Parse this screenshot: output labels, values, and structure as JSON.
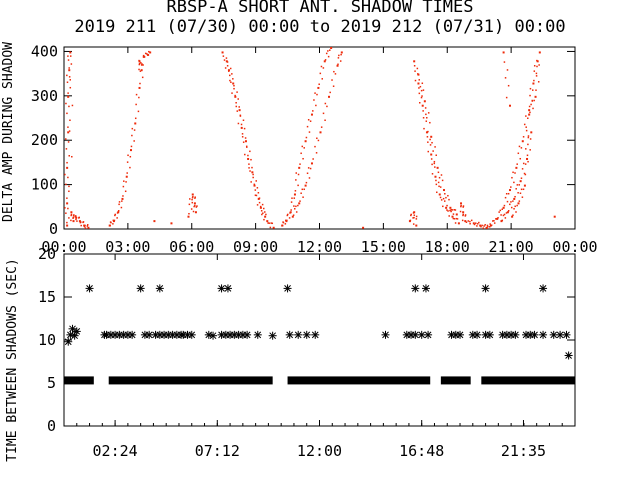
{
  "chart_data": [
    {
      "type": "scatter",
      "title": "RBSP-A SHORT ANT. SHADOW TIMES",
      "subtitle": "2019 211 (07/30) 00:00 to 2019 212 (07/31) 00:00",
      "xlabel": "",
      "ylabel": "DELTA AMP DURING SHADOW",
      "xlim": [
        0,
        24
      ],
      "ylim": [
        0,
        410
      ],
      "x_tick_labels": [
        "00:00",
        "03:00",
        "06:00",
        "09:00",
        "12:00",
        "15:00",
        "18:00",
        "21:00",
        "00:00"
      ],
      "y_tick_labels": [
        "0",
        "100",
        "200",
        "300",
        "400"
      ],
      "grid": false,
      "color": "#ee2a0a",
      "series": [
        {
          "values": [
            [
              0.1,
              10
            ],
            [
              0.1,
              60
            ],
            [
              0.1,
              140
            ],
            [
              0.15,
              220
            ],
            [
              0.15,
              300
            ],
            [
              0.2,
              360
            ],
            [
              0.25,
              400
            ],
            [
              0.3,
              40
            ],
            [
              0.4,
              20
            ],
            [
              0.5,
              30
            ],
            [
              0.7,
              20
            ],
            [
              0.9,
              10
            ],
            [
              1.1,
              5
            ],
            [
              2.1,
              10
            ],
            [
              2.3,
              20
            ],
            [
              2.5,
              40
            ],
            [
              2.7,
              70
            ],
            [
              2.9,
              120
            ],
            [
              3.1,
              180
            ],
            [
              3.3,
              240
            ],
            [
              3.5,
              320
            ],
            [
              3.7,
              390
            ],
            [
              4.0,
              400
            ],
            [
              3.5,
              380
            ],
            [
              3.6,
              360
            ],
            [
              4.2,
              20
            ],
            [
              5.0,
              15
            ],
            [
              5.8,
              30
            ],
            [
              6.0,
              80
            ],
            [
              6.1,
              60
            ],
            [
              6.15,
              40
            ],
            [
              7.4,
              400
            ],
            [
              7.7,
              360
            ],
            [
              8.0,
              300
            ],
            [
              8.3,
              230
            ],
            [
              8.6,
              160
            ],
            [
              8.9,
              100
            ],
            [
              9.2,
              50
            ],
            [
              9.5,
              20
            ],
            [
              9.8,
              5
            ],
            [
              7.6,
              380
            ],
            [
              7.9,
              330
            ],
            [
              8.2,
              270
            ],
            [
              8.5,
              200
            ],
            [
              8.8,
              130
            ],
            [
              9.1,
              70
            ],
            [
              9.4,
              30
            ],
            [
              10.2,
              10
            ],
            [
              10.4,
              20
            ],
            [
              10.6,
              40
            ],
            [
              10.8,
              80
            ],
            [
              11.0,
              140
            ],
            [
              11.3,
              200
            ],
            [
              11.6,
              260
            ],
            [
              11.9,
              320
            ],
            [
              12.2,
              380
            ],
            [
              12.5,
              410
            ],
            [
              10.7,
              30
            ],
            [
              11.0,
              60
            ],
            [
              11.3,
              100
            ],
            [
              11.6,
              150
            ],
            [
              12.0,
              220
            ],
            [
              12.4,
              300
            ],
            [
              12.8,
              370
            ],
            [
              13.0,
              400
            ],
            [
              14.0,
              5
            ],
            [
              16.4,
              380
            ],
            [
              16.6,
              330
            ],
            [
              16.8,
              280
            ],
            [
              17.0,
              220
            ],
            [
              17.2,
              170
            ],
            [
              17.4,
              120
            ],
            [
              17.6,
              80
            ],
            [
              17.9,
              50
            ],
            [
              18.2,
              30
            ],
            [
              18.5,
              15
            ],
            [
              16.6,
              350
            ],
            [
              16.9,
              290
            ],
            [
              17.2,
              210
            ],
            [
              17.5,
              140
            ],
            [
              17.8,
              90
            ],
            [
              18.1,
              50
            ],
            [
              18.4,
              35
            ],
            [
              16.2,
              20
            ],
            [
              16.4,
              40
            ],
            [
              16.5,
              10
            ],
            [
              18.6,
              60
            ],
            [
              18.7,
              40
            ],
            [
              18.8,
              20
            ],
            [
              19.2,
              15
            ],
            [
              19.5,
              10
            ],
            [
              19.8,
              5
            ],
            [
              20.0,
              10
            ],
            [
              20.3,
              25
            ],
            [
              20.6,
              50
            ],
            [
              20.9,
              90
            ],
            [
              21.2,
              140
            ],
            [
              21.5,
              200
            ],
            [
              21.8,
              270
            ],
            [
              22.0,
              330
            ],
            [
              22.2,
              380
            ],
            [
              20.5,
              20
            ],
            [
              20.8,
              40
            ],
            [
              21.1,
              70
            ],
            [
              21.4,
              110
            ],
            [
              21.7,
              160
            ],
            [
              21.9,
              220
            ],
            [
              21.0,
              30
            ],
            [
              21.3,
              60
            ],
            [
              21.6,
              100
            ],
            [
              21.8,
              260
            ],
            [
              22.1,
              300
            ],
            [
              22.3,
              400
            ],
            [
              20.6,
              400
            ],
            [
              20.9,
              280
            ],
            [
              23.0,
              30
            ]
          ]
        }
      ]
    },
    {
      "type": "scatter",
      "title": "",
      "xlabel": "",
      "ylabel": "TIME BETWEEN SHADOWS (SEC)",
      "xlim": [
        0,
        24
      ],
      "ylim": [
        0,
        20
      ],
      "x_tick_labels": [
        "02:24",
        "07:12",
        "12:00",
        "16:48",
        "21:35"
      ],
      "y_tick_labels": [
        "0",
        "5",
        "10",
        "15",
        "20"
      ],
      "grid": false,
      "marker": "*",
      "bands": [
        {
          "y": 5.3,
          "x_ranges": [
            [
              0.0,
              1.4
            ],
            [
              2.1,
              9.8
            ],
            [
              10.5,
              17.2
            ],
            [
              17.7,
              19.1
            ],
            [
              19.6,
              24.0
            ]
          ]
        }
      ],
      "series": [
        {
          "values": [
            [
              0.2,
              9.8
            ],
            [
              0.3,
              10.6
            ],
            [
              0.4,
              11.3
            ],
            [
              0.5,
              10.5
            ],
            [
              0.6,
              11.0
            ],
            [
              1.2,
              16.0
            ],
            [
              1.9,
              10.6
            ],
            [
              2.0,
              10.6
            ],
            [
              2.2,
              10.6
            ],
            [
              2.4,
              10.6
            ],
            [
              2.6,
              10.6
            ],
            [
              2.8,
              10.6
            ],
            [
              3.0,
              10.6
            ],
            [
              3.2,
              10.6
            ],
            [
              3.6,
              16.0
            ],
            [
              3.8,
              10.6
            ],
            [
              4.0,
              10.6
            ],
            [
              4.3,
              10.6
            ],
            [
              4.5,
              10.6
            ],
            [
              4.7,
              10.6
            ],
            [
              4.9,
              10.6
            ],
            [
              5.1,
              10.6
            ],
            [
              5.3,
              10.6
            ],
            [
              5.5,
              10.6
            ],
            [
              5.6,
              10.6
            ],
            [
              5.8,
              10.6
            ],
            [
              6.0,
              10.6
            ],
            [
              4.5,
              16.0
            ],
            [
              6.8,
              10.6
            ],
            [
              7.0,
              10.5
            ],
            [
              7.4,
              16.0
            ],
            [
              7.7,
              16.0
            ],
            [
              7.4,
              10.6
            ],
            [
              7.6,
              10.6
            ],
            [
              7.8,
              10.6
            ],
            [
              8.0,
              10.6
            ],
            [
              8.2,
              10.6
            ],
            [
              8.4,
              10.6
            ],
            [
              8.6,
              10.6
            ],
            [
              9.1,
              10.6
            ],
            [
              9.8,
              10.5
            ],
            [
              10.5,
              16.0
            ],
            [
              10.6,
              10.6
            ],
            [
              11.0,
              10.6
            ],
            [
              11.4,
              10.6
            ],
            [
              11.8,
              10.6
            ],
            [
              15.1,
              10.6
            ],
            [
              16.1,
              10.6
            ],
            [
              16.3,
              10.6
            ],
            [
              16.5,
              10.6
            ],
            [
              16.5,
              16.0
            ],
            [
              17.0,
              16.0
            ],
            [
              16.8,
              10.6
            ],
            [
              17.1,
              10.6
            ],
            [
              18.2,
              10.6
            ],
            [
              18.4,
              10.6
            ],
            [
              18.6,
              10.6
            ],
            [
              19.2,
              10.6
            ],
            [
              19.4,
              10.6
            ],
            [
              19.8,
              16.0
            ],
            [
              19.8,
              10.6
            ],
            [
              20.0,
              10.6
            ],
            [
              20.6,
              10.6
            ],
            [
              20.8,
              10.6
            ],
            [
              21.0,
              10.6
            ],
            [
              21.2,
              10.6
            ],
            [
              21.7,
              10.6
            ],
            [
              21.9,
              10.6
            ],
            [
              22.1,
              10.6
            ],
            [
              22.5,
              16.0
            ],
            [
              22.5,
              10.6
            ],
            [
              23.0,
              10.6
            ],
            [
              23.3,
              10.6
            ],
            [
              23.6,
              10.6
            ],
            [
              23.7,
              8.2
            ]
          ]
        }
      ]
    }
  ]
}
